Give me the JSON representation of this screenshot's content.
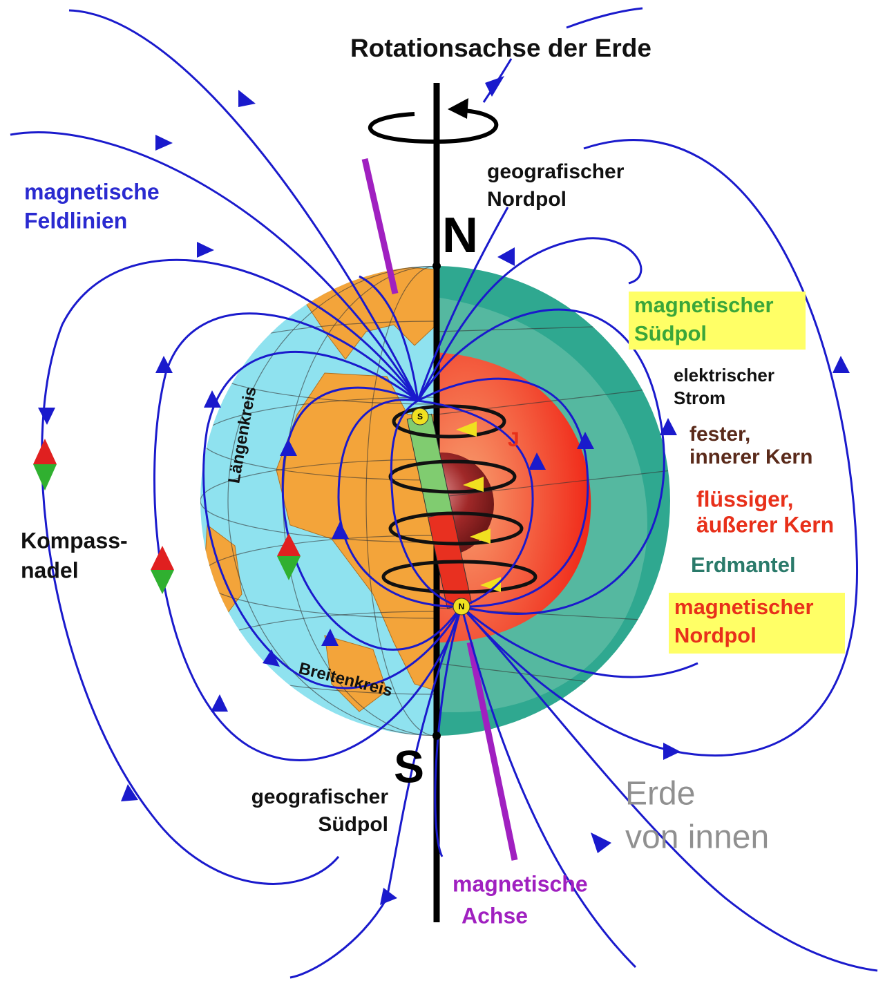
{
  "rotation_axis": "Rotationsachse der Erde",
  "geographic_north": {
    "letter": "N",
    "lines": [
      "geografischer",
      "Nordpol"
    ]
  },
  "geographic_south": {
    "letter": "S",
    "lines": [
      "geografischer",
      "Südpol"
    ]
  },
  "field_lines": [
    "magnetische",
    "Feldlinien"
  ],
  "magnetic_south": [
    "magnetischer",
    "Südpol"
  ],
  "current": [
    "elektrischer",
    "Strom"
  ],
  "inner_core": [
    "fester,",
    "innerer Kern"
  ],
  "outer_core": [
    "flüssiger,",
    "äußerer Kern"
  ],
  "mantle": "Erdmantel",
  "magnetic_north": [
    "magnetischer",
    "Nordpol"
  ],
  "compass": [
    "Kompass-",
    "nadel"
  ],
  "meridian": "Längenkreis",
  "parallel": "Breitenkreis",
  "caption": [
    "Erde",
    "von innen"
  ],
  "magnetic_axis": [
    "magnetische",
    "Achse"
  ],
  "current_symbol": "J",
  "magnet_poles": {
    "south": "S",
    "north": "N"
  }
}
